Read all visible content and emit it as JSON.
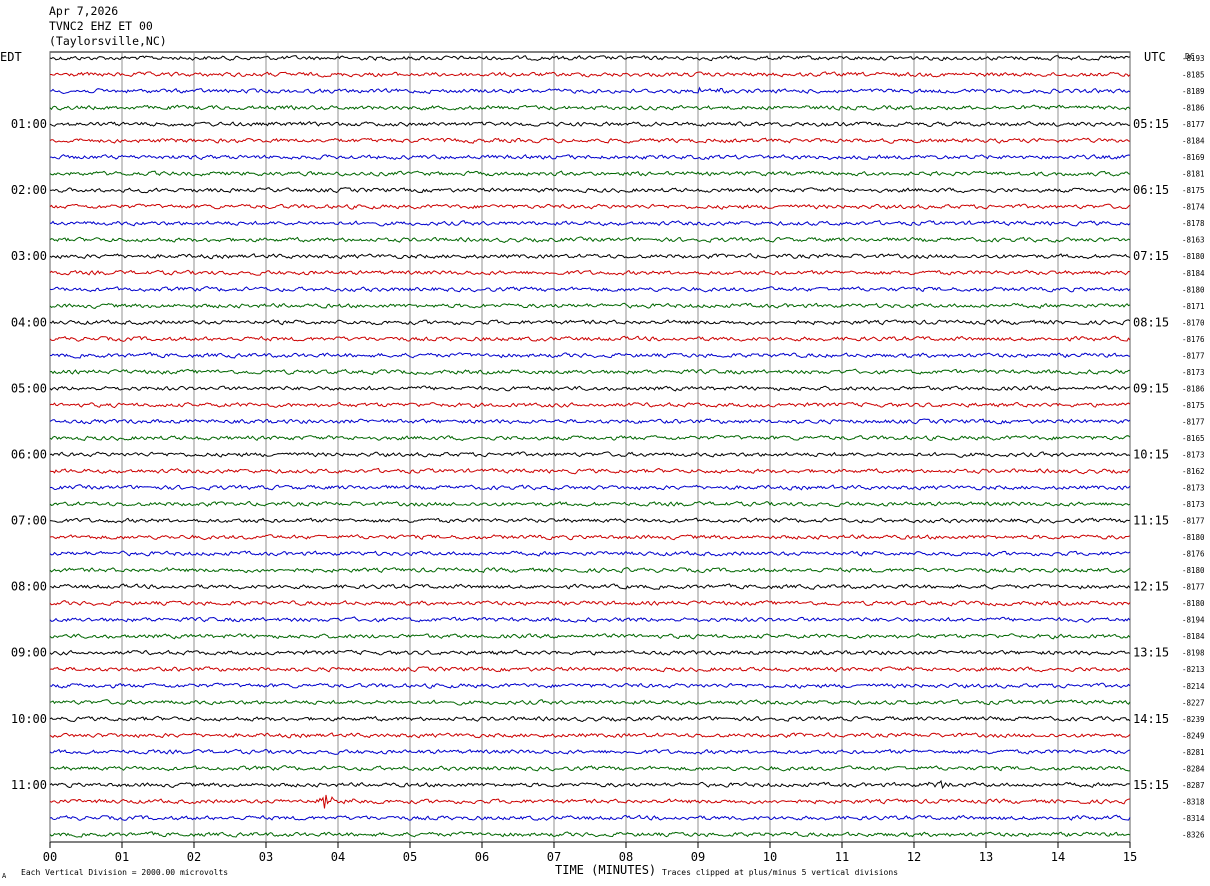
{
  "header": {
    "date": "Apr 7,2026",
    "station": "TVNC2 EHZ ET 00",
    "location": "(Taylorsville,NC)"
  },
  "labels": {
    "left_zone": "EDT",
    "right_zone": "UTC",
    "dc": "DC"
  },
  "footer": {
    "scale_note": "Each Vertical Division = 2000.00 microvolts",
    "clip_note": "Traces clipped at plus/minus 5 vertical divisions",
    "xaxis_title": "TIME (MINUTES)",
    "corner_mark": "A"
  },
  "chart_data": {
    "type": "line",
    "title": "",
    "xlabel": "TIME (MINUTES)",
    "ylabel": "",
    "xlim": [
      0,
      15
    ],
    "x_ticks": [
      "00",
      "01",
      "02",
      "03",
      "04",
      "05",
      "06",
      "07",
      "08",
      "09",
      "10",
      "11",
      "12",
      "13",
      "14",
      "15"
    ],
    "grid": "vertical every minute",
    "trace_colors": [
      "#000000",
      "#cc0000",
      "#0000cc",
      "#006600"
    ],
    "left_hour_labels": [
      "01:00",
      "02:00",
      "03:00",
      "04:00",
      "05:00",
      "06:00",
      "07:00",
      "08:00",
      "09:00",
      "10:00",
      "11:00"
    ],
    "right_hour_labels": [
      "05:15",
      "06:15",
      "07:15",
      "08:15",
      "09:15",
      "10:15",
      "11:15",
      "12:15",
      "13:15",
      "14:15",
      "15:15"
    ],
    "dc_offsets": [
      "-8193",
      "-8185",
      "-8189",
      "-8186",
      "-8177",
      "-8184",
      "-8169",
      "-8181",
      "-8175",
      "-8174",
      "-8178",
      "-8163",
      "-8180",
      "-8184",
      "-8180",
      "-8171",
      "-8170",
      "-8176",
      "-8177",
      "-8173",
      "-8186",
      "-8175",
      "-8177",
      "-8165",
      "-8173",
      "-8162",
      "-8173",
      "-8173",
      "-8177",
      "-8180",
      "-8176",
      "-8180",
      "-8177",
      "-8180",
      "-8194",
      "-8184",
      "-8198",
      "-8213",
      "-8214",
      "-8227",
      "-8239",
      "-8249",
      "-8281",
      "-8284",
      "-8287",
      "-8318",
      "-8314",
      "-8326"
    ],
    "events": [
      {
        "trace": 2,
        "minute": 9.1,
        "note": "small burst"
      },
      {
        "trace": 45,
        "minute": 3.8,
        "note": "spike with coda"
      },
      {
        "trace": 44,
        "minute": 12.3,
        "note": "small burst"
      }
    ]
  }
}
